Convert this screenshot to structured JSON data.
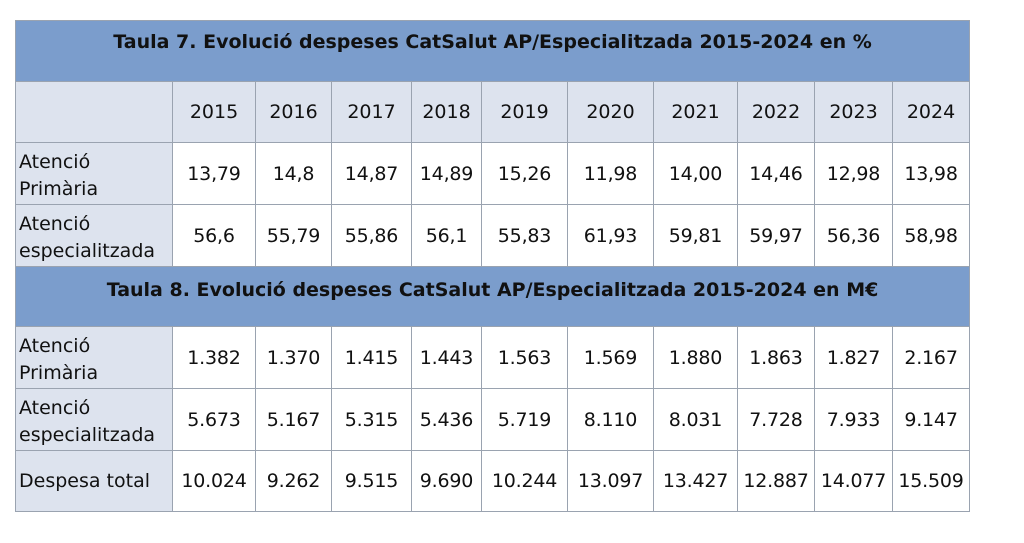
{
  "table7": {
    "title": "Taula 7. Evolució despeses CatSalut AP/Especialitzada 2015-2024 en %",
    "years": [
      "2015",
      "2016",
      "2017",
      "2018",
      "2019",
      "2020",
      "2021",
      "2022",
      "2023",
      "2024"
    ],
    "rows": [
      {
        "label": "Atenció Primària",
        "values": [
          "13,79",
          "14,8",
          "14,87",
          "14,89",
          "15,26",
          "11,98",
          "14,00",
          "14,46",
          "12,98",
          "13,98"
        ]
      },
      {
        "label": "Atenció especialitzada",
        "values": [
          "56,6",
          "55,79",
          "55,86",
          "56,1",
          "55,83",
          "61,93",
          "59,81",
          "59,97",
          "56,36",
          "58,98"
        ]
      }
    ]
  },
  "table8": {
    "title": "Taula 8. Evolució despeses CatSalut AP/Especialitzada 2015-2024 en M€",
    "rows": [
      {
        "label": "Atenció Primària",
        "values": [
          "1.382",
          "1.370",
          "1.415",
          "1.443",
          "1.563",
          "1.569",
          "1.880",
          "1.863",
          "1.827",
          "2.167"
        ]
      },
      {
        "label": "Atenció especialitzada",
        "values": [
          "5.673",
          "5.167",
          "5.315",
          "5.436",
          "5.719",
          "8.110",
          "8.031",
          "7.728",
          "7.933",
          "9.147"
        ]
      },
      {
        "label": "Despesa total",
        "values": [
          "10.024",
          "9.262",
          "9.515",
          "9.690",
          "10.244",
          "13.097",
          "13.427",
          "12.887",
          "14.077",
          "15.509"
        ]
      }
    ]
  }
}
